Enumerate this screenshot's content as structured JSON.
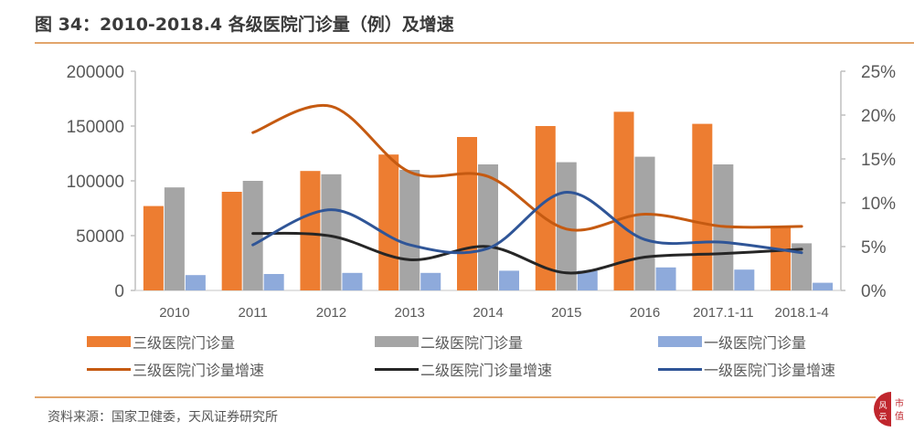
{
  "header": {
    "title": "图 34：2010-2018.4 各级医院门诊量（例）及增速"
  },
  "footer": {
    "source": "资料来源：国家卫健委，天风证券研究所",
    "stamp_text": "市值风云"
  },
  "colors": {
    "tier3_bar": "#ed7d31",
    "tier2_bar": "#a5a5a5",
    "tier1_bar": "#8eaadb",
    "tier3_line": "#c55a11",
    "tier2_line": "#262626",
    "tier1_line": "#2f5597",
    "axis": "#bfbfbf",
    "accent_rule": "#e2a56b"
  },
  "legend": {
    "items": [
      {
        "label": "三级医院门诊量",
        "kind": "bar",
        "color": "#ed7d31"
      },
      {
        "label": "二级医院门诊量",
        "kind": "bar",
        "color": "#a5a5a5"
      },
      {
        "label": "一级医院门诊量",
        "kind": "bar",
        "color": "#8eaadb"
      },
      {
        "label": "三级医院门诊量增速",
        "kind": "line",
        "color": "#c55a11"
      },
      {
        "label": "二级医院门诊量增速",
        "kind": "line",
        "color": "#262626"
      },
      {
        "label": "一级医院门诊量增速",
        "kind": "line",
        "color": "#2f5597"
      }
    ]
  },
  "chart_data": {
    "type": "bar",
    "title": "2010-2018.4 各级医院门诊量（例）及增速",
    "categories": [
      "2010",
      "2011",
      "2012",
      "2013",
      "2014",
      "2015",
      "2016",
      "2017.1-11",
      "2018.1-4"
    ],
    "series": [
      {
        "name": "三级医院门诊量",
        "type": "bar",
        "axis": "left",
        "values": [
          77000,
          90000,
          109000,
          124000,
          140000,
          150000,
          163000,
          152000,
          58000
        ]
      },
      {
        "name": "二级医院门诊量",
        "type": "bar",
        "axis": "left",
        "values": [
          94000,
          100000,
          106000,
          110000,
          115000,
          117000,
          122000,
          115000,
          43000
        ]
      },
      {
        "name": "一级医院门诊量",
        "type": "bar",
        "axis": "left",
        "values": [
          14000,
          15000,
          16000,
          16000,
          18000,
          18000,
          21000,
          19000,
          7000
        ]
      },
      {
        "name": "三级医院门诊量增速",
        "type": "line",
        "axis": "right",
        "values": [
          null,
          0.18,
          0.21,
          0.135,
          0.13,
          0.07,
          0.087,
          0.073,
          0.073
        ]
      },
      {
        "name": "二级医院门诊量增速",
        "type": "line",
        "axis": "right",
        "values": [
          null,
          0.065,
          0.062,
          0.035,
          0.05,
          0.02,
          0.038,
          0.042,
          0.047
        ]
      },
      {
        "name": "一级医院门诊量增速",
        "type": "line",
        "axis": "right",
        "values": [
          null,
          0.052,
          0.092,
          0.052,
          0.048,
          0.112,
          0.058,
          0.055,
          0.043
        ]
      }
    ],
    "left_axis": {
      "ylim": [
        0,
        200000
      ],
      "ticks": [
        "0",
        "50000",
        "100000",
        "150000",
        "200000"
      ]
    },
    "right_axis": {
      "ylim": [
        0,
        0.25
      ],
      "ticks": [
        "0%",
        "5%",
        "10%",
        "15%",
        "20%",
        "25%"
      ]
    },
    "xlabel": "",
    "ylabel": "",
    "grid": false,
    "legend_position": "bottom"
  }
}
